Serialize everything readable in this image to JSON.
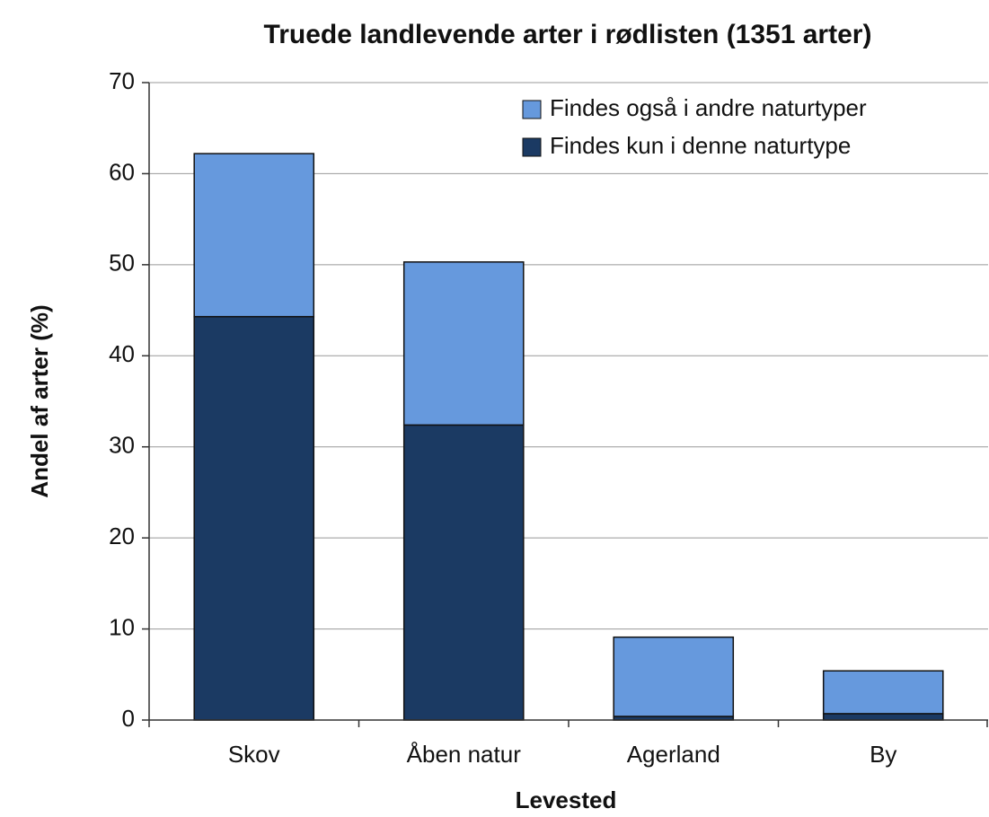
{
  "chart_data": {
    "type": "stacked_bar",
    "title": "Truede landlevende arter i rødlisten (1351 arter)",
    "x_label": "Levested",
    "y_label": "Andel af arter (%)",
    "categories": [
      "Skov",
      "Åben natur",
      "Agerland",
      "By"
    ],
    "series": [
      {
        "name": "Findes kun i denne naturtype",
        "color": "#1b3a63",
        "values": [
          44.3,
          32.4,
          0.4,
          0.7
        ]
      },
      {
        "name": "Findes også i andre naturtyper",
        "color": "#6699dd",
        "values": [
          17.9,
          17.9,
          8.7,
          4.7
        ]
      }
    ],
    "ylim": [
      0,
      70
    ],
    "yticks": [
      0,
      10,
      20,
      30,
      40,
      50,
      60,
      70
    ],
    "grid": true,
    "legend": "top-right"
  }
}
